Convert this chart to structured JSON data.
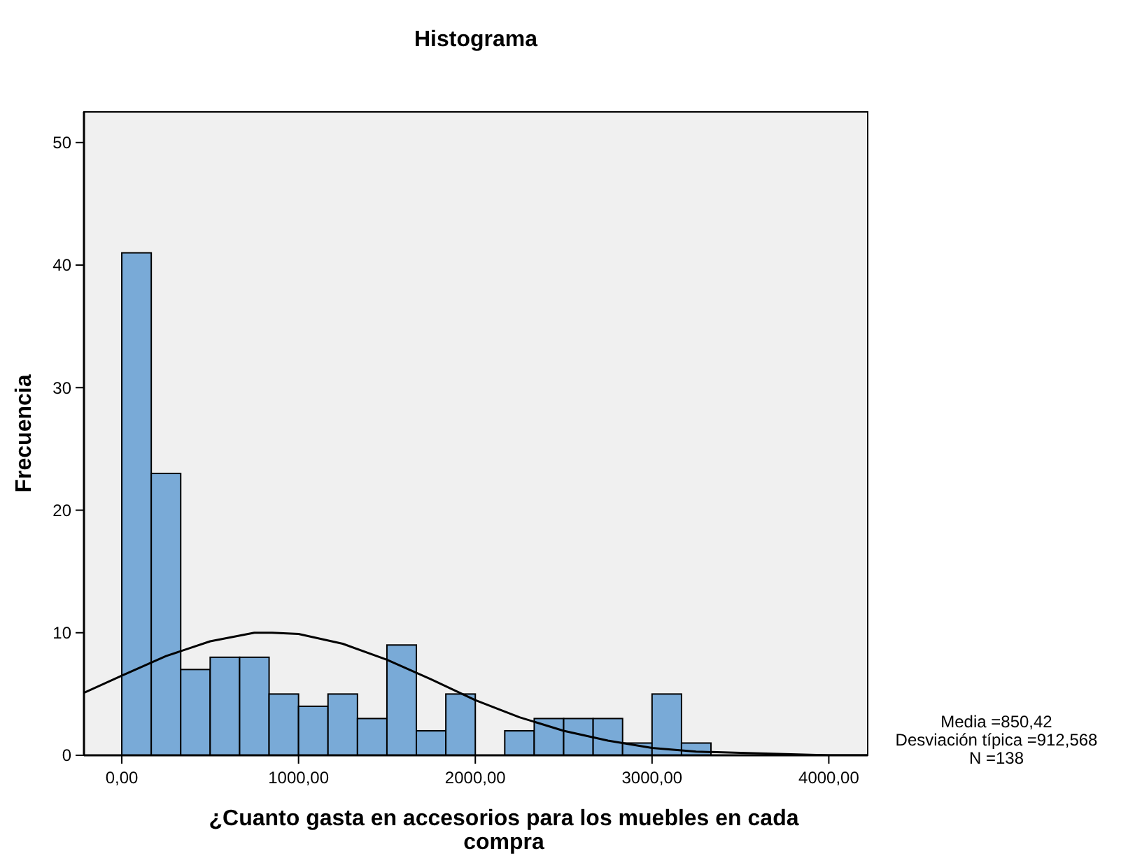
{
  "chart_data": {
    "type": "histogram",
    "title": "Histograma",
    "xlabel": "¿Cuanto gasta en accesorios para los muebles en cada compra",
    "ylabel": "Frecuencia",
    "bins": [
      0,
      166.67,
      333.33,
      500,
      666.67,
      833.33,
      1000,
      1166.67,
      1333.33,
      1500,
      1666.67,
      1833.33,
      2000,
      2166.67,
      2333.33,
      2500,
      2666.67,
      2833.33,
      3000,
      3166.67,
      3333.33
    ],
    "values": [
      41,
      23,
      7,
      8,
      8,
      5,
      4,
      5,
      3,
      9,
      2,
      5,
      0,
      2,
      3,
      3,
      3,
      1,
      5,
      1
    ],
    "color": "#79aad7",
    "series": [
      {
        "type": "line",
        "color": "#000000",
        "x": [
          -214,
          0,
          250,
          500,
          750,
          850,
          1000,
          1250,
          1500,
          1750,
          2000,
          2250,
          2500,
          2750,
          3000,
          3250,
          3500,
          3750,
          4000,
          4220
        ],
        "values": [
          5.1,
          6.5,
          8.1,
          9.3,
          10,
          10,
          9.9,
          9.1,
          7.8,
          6.2,
          4.5,
          3.1,
          2,
          1.2,
          0.6,
          0.3,
          0.2,
          0.1,
          0,
          0
        ]
      }
    ],
    "xlim": [
      -214,
      4220
    ],
    "ylim": [
      0,
      52.5
    ],
    "xticks": [
      {
        "value": 0,
        "label": "0,00"
      },
      {
        "value": 1000,
        "label": "1000,00"
      },
      {
        "value": 2000,
        "label": "2000,00"
      },
      {
        "value": 3000,
        "label": "3000,00"
      },
      {
        "value": 4000,
        "label": "4000,00"
      }
    ],
    "yticks": [
      0,
      10,
      20,
      30,
      40,
      50
    ],
    "annotations": [
      "Media =850,42",
      "Desviación típica =912,568",
      "N =138"
    ]
  }
}
